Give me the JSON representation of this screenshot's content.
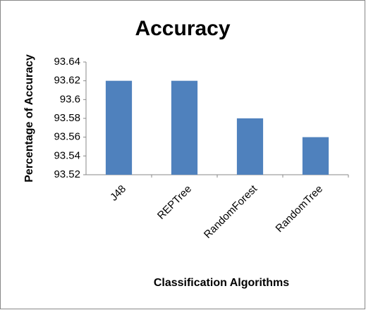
{
  "chart_data": {
    "type": "bar",
    "title": "Accuracy",
    "x_label": "Classification Algorithms",
    "y_label": "Percentage of Accuracy",
    "categories": [
      "J48",
      "REPTree",
      "RandomForest",
      "RandomTree"
    ],
    "values": [
      93.62,
      93.62,
      93.58,
      93.56
    ],
    "color": "#4f81bd",
    "ylim": [
      93.52,
      93.64
    ],
    "yticks": [
      93.52,
      93.54,
      93.56,
      93.58,
      93.6,
      93.62,
      93.64
    ],
    "grid": false
  }
}
